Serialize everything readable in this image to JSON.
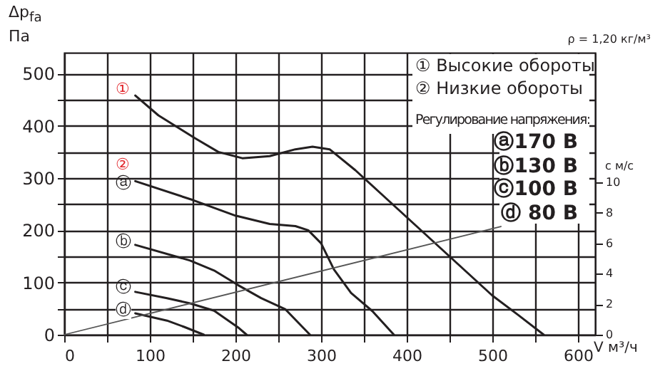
{
  "chart_data": {
    "type": "line",
    "ylabel": "Δp$_{fa}$ Па",
    "xlabel": "V м³/ч",
    "y2label": "с м/с",
    "xlim": [
      0,
      620
    ],
    "xticks": [
      0,
      {
        "value": 50,
        "label": null
      },
      100,
      {
        "value": 150,
        "label": null
      },
      200,
      {
        "value": 250,
        "label": null
      },
      300,
      {
        "value": 350,
        "label": null
      },
      400,
      {
        "value": 450,
        "label": null
      },
      500,
      {
        "value": 550,
        "label": null
      },
      600
    ],
    "ylim": [
      0,
      540
    ],
    "yticks": [
      0,
      {
        "value": 50,
        "label": null
      },
      100,
      {
        "value": 150,
        "label": null
      },
      200,
      {
        "value": 250,
        "label": null
      },
      300,
      {
        "value": 350,
        "label": null
      },
      400,
      {
        "value": 450,
        "label": null
      },
      500
    ],
    "y2lim": [
      0,
      18.5
    ],
    "y2ticks": [
      0,
      2,
      4,
      6,
      8,
      10
    ],
    "grid": true,
    "series": [
      {
        "color": "#231f20",
        "x": [
          83,
          110,
          153,
          180,
          208,
          240,
          270,
          290,
          310,
          340,
          370,
          400,
          450,
          500,
          530,
          560
        ],
        "values": [
          458,
          420,
          376,
          350,
          338,
          342,
          355,
          360,
          355,
          315,
          270,
          225,
          150,
          75,
          38,
          0
        ]
      },
      {
        "color": "#231f20",
        "x": [
          83,
          150,
          200,
          240,
          270,
          285,
          300,
          315,
          335,
          360,
          385
        ],
        "values": [
          294,
          258,
          228,
          212,
          208,
          200,
          175,
          125,
          80,
          45,
          0
        ]
      },
      {
        "color": "#231f20",
        "x": [
          83,
          147,
          175,
          203,
          230,
          258,
          287
        ],
        "values": [
          172,
          142,
          123,
          95,
          70,
          49,
          0
        ]
      },
      {
        "color": "#231f20",
        "x": [
          83,
          120,
          147,
          175,
          203,
          213
        ],
        "values": [
          82,
          70,
          60,
          46,
          14,
          0
        ]
      },
      {
        "color": "#231f20",
        "x": [
          83,
          120,
          140,
          163
        ],
        "values": [
          41,
          27,
          15,
          0
        ]
      },
      {
        "color": "#555555",
        "axis": "y2",
        "x": [
          0,
          510
        ],
        "values": [
          0,
          7.1
        ]
      }
    ],
    "annotations": [
      "ρ = 1,20 кг/м³",
      "① Высокие обороты",
      "② Низкие обороты",
      "Регулирование напряжения:",
      "ⓐ170 В",
      "ⓑ130 В",
      "ⓒ100 В",
      "ⓓ 80 В",
      "①",
      "②",
      "ⓐ",
      "ⓑ",
      "ⓒ",
      "ⓓ"
    ]
  }
}
